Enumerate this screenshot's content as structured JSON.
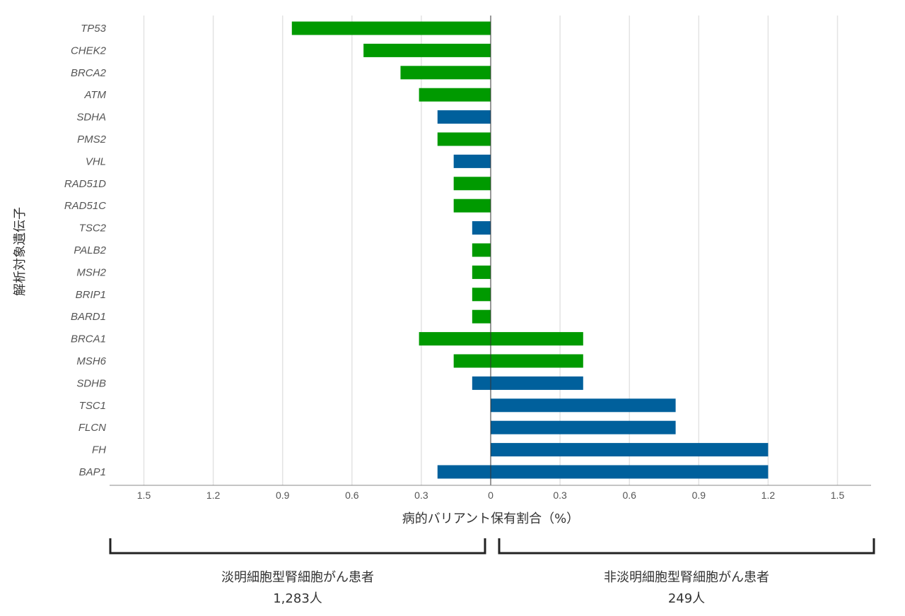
{
  "chart_data": {
    "type": "bar",
    "orientation": "horizontal-butterfly",
    "xlabel": "病的バリアント保有割合（%）",
    "ylabel": "解析対象遺伝子",
    "xlim": [
      -1.65,
      1.65
    ],
    "x_ticks": [
      "1.5",
      "1.2",
      "0.9",
      "0.6",
      "0.3",
      "0",
      "0.3",
      "0.6",
      "0.9",
      "1.2",
      "1.5"
    ],
    "grid": "vertical",
    "colors": {
      "green": "#009a00",
      "blue": "#00609c"
    },
    "categories": [
      "TP53",
      "CHEK2",
      "BRCA2",
      "ATM",
      "SDHA",
      "PMS2",
      "VHL",
      "RAD51D",
      "RAD51C",
      "TSC2",
      "PALB2",
      "MSH2",
      "BRIP1",
      "BARD1",
      "BRCA1",
      "MSH6",
      "SDHB",
      "TSC1",
      "FLCN",
      "FH",
      "BAP1"
    ],
    "bar_colors": [
      "green",
      "green",
      "green",
      "green",
      "blue",
      "green",
      "blue",
      "green",
      "green",
      "blue",
      "green",
      "green",
      "green",
      "green",
      "green",
      "green",
      "blue",
      "blue",
      "blue",
      "blue",
      "blue"
    ],
    "series": [
      {
        "name": "淡明細胞型腎細胞がん患者",
        "side": "left",
        "values": [
          0.86,
          0.55,
          0.39,
          0.31,
          0.23,
          0.23,
          0.16,
          0.16,
          0.16,
          0.08,
          0.08,
          0.08,
          0.08,
          0.08,
          0.31,
          0.16,
          0.08,
          0,
          0,
          0,
          0.23
        ]
      },
      {
        "name": "非淡明細胞型腎細胞がん患者",
        "side": "right",
        "values": [
          0,
          0,
          0,
          0,
          0,
          0,
          0,
          0,
          0,
          0,
          0,
          0,
          0,
          0,
          0.4,
          0.4,
          0.4,
          0.8,
          0.8,
          1.2,
          1.2
        ]
      }
    ],
    "groups": [
      {
        "label": "淡明細胞型腎細胞がん患者",
        "count": "1,283人"
      },
      {
        "label": "非淡明細胞型腎細胞がん患者",
        "count": "249人"
      }
    ]
  }
}
